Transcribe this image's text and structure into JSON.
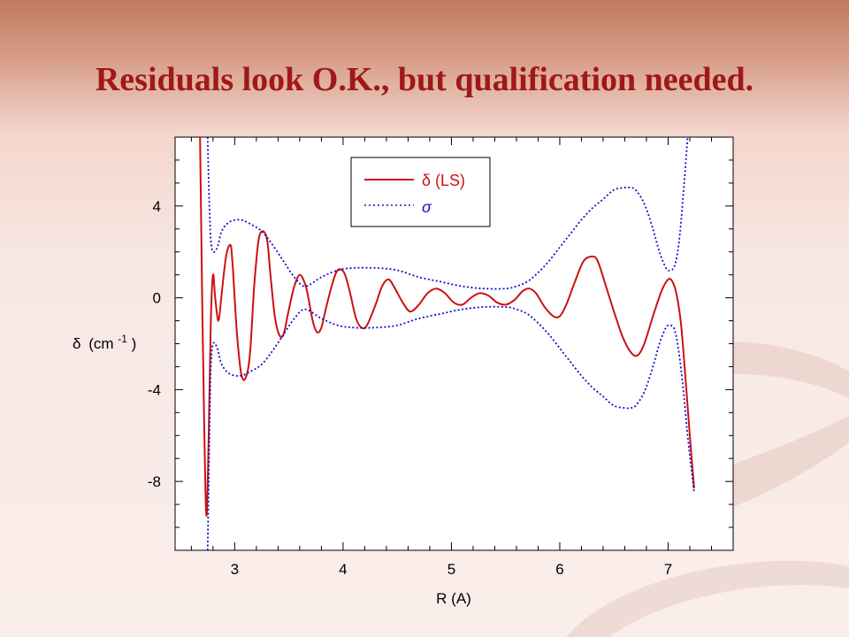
{
  "slide": {
    "title": "Residuals look O.K., but qualification needed."
  },
  "chart_data": {
    "type": "line",
    "xlabel": "R (A)",
    "ylabel": "δ (cm-1)",
    "ylabel_parts": {
      "symbol": "δ",
      "unit": "(cm",
      "sup": "-1",
      "close": ")"
    },
    "xlim": [
      2.45,
      7.6
    ],
    "ylim": [
      -11,
      7
    ],
    "x_ticks": [
      3,
      4,
      5,
      6,
      7
    ],
    "y_ticks": [
      -8,
      -4,
      0,
      4
    ],
    "grid": false,
    "legend_position": "top-center",
    "colors": {
      "delta": "#cc1111",
      "sigma": "#1111cc"
    },
    "series": [
      {
        "name": "δ (LS)",
        "label_text": "δ (LS)",
        "style": "solid",
        "x": [
          2.68,
          2.7,
          2.72,
          2.74,
          2.76,
          2.78,
          2.8,
          2.82,
          2.85,
          2.88,
          2.92,
          2.96,
          2.98,
          3.02,
          3.06,
          3.1,
          3.14,
          3.18,
          3.22,
          3.26,
          3.3,
          3.33,
          3.37,
          3.41,
          3.45,
          3.5,
          3.55,
          3.6,
          3.65,
          3.68,
          3.72,
          3.76,
          3.8,
          3.84,
          3.9,
          3.95,
          4.01,
          4.06,
          4.12,
          4.17,
          4.22,
          4.3,
          4.36,
          4.42,
          4.48,
          4.55,
          4.62,
          4.7,
          4.78,
          4.86,
          4.94,
          5.02,
          5.1,
          5.18,
          5.26,
          5.34,
          5.42,
          5.5,
          5.58,
          5.66,
          5.72,
          5.78,
          5.86,
          5.94,
          6.0,
          6.06,
          6.14,
          6.22,
          6.3,
          6.35,
          6.42,
          6.5,
          6.58,
          6.66,
          6.72,
          6.78,
          6.86,
          6.94,
          7.0,
          7.04,
          7.08,
          7.12,
          7.16,
          7.2,
          7.24
        ],
        "y": [
          7,
          0,
          -6,
          -9.5,
          -6,
          -1,
          1.0,
          0,
          -1,
          0.2,
          1.8,
          2.3,
          1.5,
          -1.5,
          -3.3,
          -3.5,
          -2.5,
          0.5,
          2.5,
          2.9,
          2.5,
          1,
          -0.8,
          -1.6,
          -1.6,
          -0.5,
          0.5,
          1.0,
          0.6,
          0,
          -1.0,
          -1.5,
          -1.3,
          -0.5,
          0.6,
          1.2,
          1.1,
          0.3,
          -0.9,
          -1.3,
          -1.2,
          -0.3,
          0.5,
          0.8,
          0.4,
          -0.2,
          -0.6,
          -0.3,
          0.2,
          0.4,
          0.2,
          -0.2,
          -0.3,
          0.0,
          0.2,
          0.1,
          -0.2,
          -0.3,
          -0.1,
          0.3,
          0.4,
          0.2,
          -0.4,
          -0.8,
          -0.8,
          -0.3,
          0.7,
          1.6,
          1.8,
          1.6,
          0.6,
          -0.6,
          -1.7,
          -2.4,
          -2.5,
          -2.0,
          -0.8,
          0.3,
          0.8,
          0.7,
          0.1,
          -1.2,
          -3.5,
          -6.0,
          -8.3
        ]
      },
      {
        "name": "σ",
        "label_text": "σ",
        "style": "dotted",
        "x": [
          2.75,
          2.76,
          2.77,
          2.78,
          2.8,
          2.84,
          2.88,
          2.95,
          3.05,
          3.15,
          3.25,
          3.35,
          3.45,
          3.55,
          3.65,
          3.8,
          3.95,
          4.1,
          4.3,
          4.5,
          4.7,
          4.9,
          5.1,
          5.3,
          5.5,
          5.6,
          5.7,
          5.8,
          5.9,
          6.0,
          6.1,
          6.2,
          6.3,
          6.4,
          6.5,
          6.6,
          6.65,
          6.7,
          6.78,
          6.86,
          6.92,
          6.98,
          7.02,
          7.06,
          7.1,
          7.14,
          7.18
        ],
        "y": [
          7,
          5,
          3.5,
          2.5,
          2.0,
          2.2,
          2.9,
          3.3,
          3.4,
          3.2,
          2.9,
          2.3,
          1.6,
          0.9,
          0.5,
          0.9,
          1.2,
          1.3,
          1.3,
          1.2,
          0.9,
          0.7,
          0.5,
          0.4,
          0.4,
          0.5,
          0.7,
          1.1,
          1.6,
          2.2,
          2.8,
          3.4,
          3.9,
          4.3,
          4.7,
          4.8,
          4.8,
          4.7,
          4.1,
          3.0,
          2.0,
          1.3,
          1.2,
          1.4,
          2.4,
          4.5,
          7
        ]
      },
      {
        "name": "σ (negative)",
        "style": "dotted",
        "legend": false,
        "x": [
          2.75,
          2.76,
          2.77,
          2.78,
          2.8,
          2.84,
          2.88,
          2.95,
          3.05,
          3.15,
          3.25,
          3.35,
          3.45,
          3.55,
          3.65,
          3.8,
          3.95,
          4.1,
          4.3,
          4.5,
          4.7,
          4.9,
          5.1,
          5.3,
          5.5,
          5.6,
          5.7,
          5.8,
          5.9,
          6.0,
          6.1,
          6.2,
          6.3,
          6.4,
          6.5,
          6.6,
          6.65,
          6.7,
          6.78,
          6.86,
          6.92,
          6.98,
          7.02,
          7.06,
          7.1,
          7.14,
          7.18,
          7.24
        ],
        "y": [
          -11,
          -8,
          -5,
          -3,
          -2.0,
          -2.2,
          -2.9,
          -3.3,
          -3.4,
          -3.2,
          -2.9,
          -2.3,
          -1.6,
          -0.9,
          -0.5,
          -0.9,
          -1.2,
          -1.3,
          -1.3,
          -1.2,
          -0.9,
          -0.7,
          -0.5,
          -0.4,
          -0.4,
          -0.5,
          -0.7,
          -1.1,
          -1.6,
          -2.2,
          -2.8,
          -3.4,
          -3.9,
          -4.3,
          -4.7,
          -4.8,
          -4.8,
          -4.7,
          -4.1,
          -3.0,
          -2.0,
          -1.3,
          -1.2,
          -1.4,
          -2.4,
          -4.0,
          -6.0,
          -8.5
        ]
      }
    ]
  }
}
